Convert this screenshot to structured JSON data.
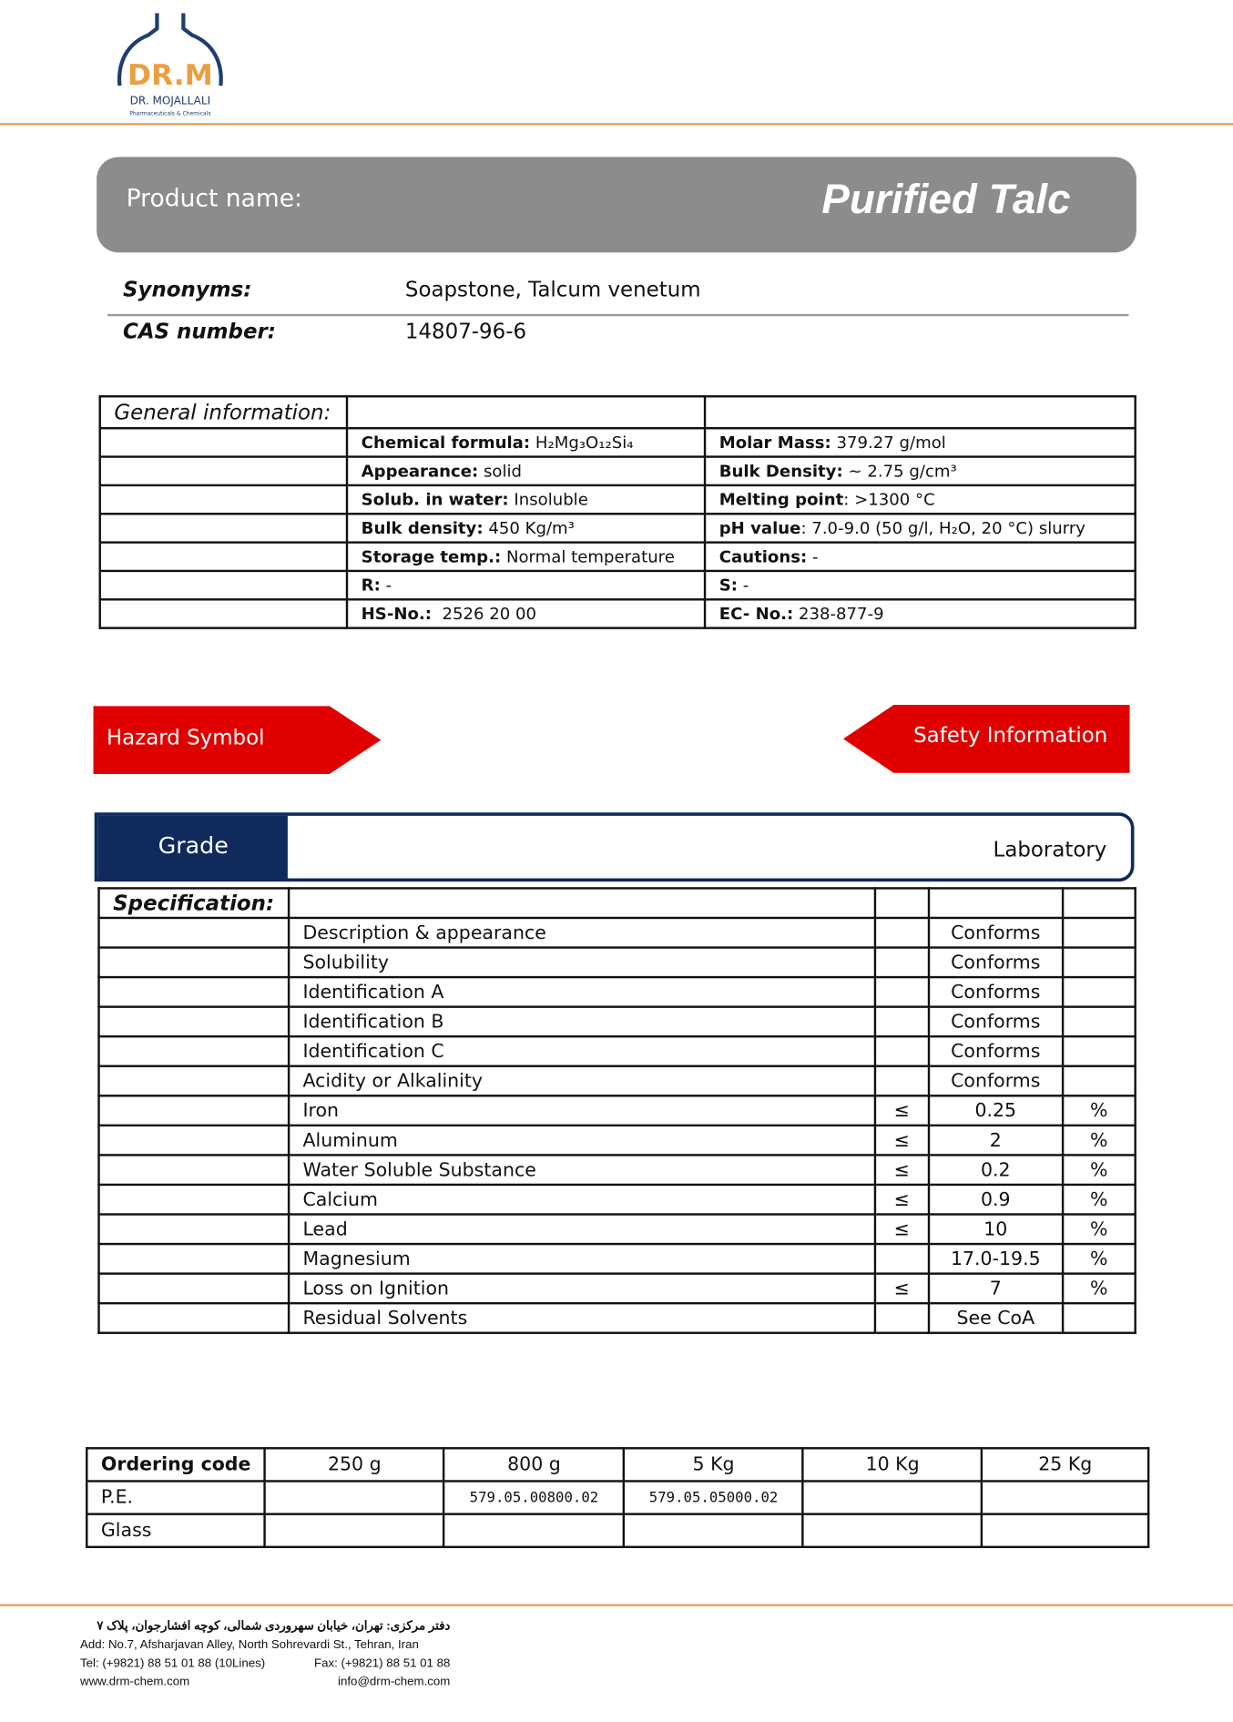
{
  "logo": {
    "text": "DR.M",
    "company": "DR. MOJALLALI",
    "tagline": "Pharmaceuticals & Chemicals",
    "colors": {
      "navy": "#1f3e6e",
      "orange": "#e8a040"
    }
  },
  "product": {
    "label": "Product name:",
    "name": "Purified Talc"
  },
  "synonyms": {
    "label": "Synonyms:",
    "value": "Soapstone, Talcum venetum"
  },
  "cas": {
    "label": "CAS number:",
    "value": "14807-96-6"
  },
  "general": {
    "title": "General information:",
    "rows": [
      [
        {
          "k": "Chemical formula:",
          "v": " H₂Mg₃O₁₂Si₄"
        },
        {
          "k": "Molar Mass:",
          "v": " 379.27 g/mol"
        }
      ],
      [
        {
          "k": "Appearance:",
          "v": " solid"
        },
        {
          "k": "Bulk Density:",
          "v": " ~ 2.75 g/cm³"
        }
      ],
      [
        {
          "k": "Solub. in water:",
          "v": " Insoluble"
        },
        {
          "k": "Melting point",
          "v": ": >1300 °C"
        }
      ],
      [
        {
          "k": "Bulk density:",
          "v": " 450 Kg/m³"
        },
        {
          "k": "pH value",
          "v": ": 7.0-9.0 (50 g/l, H₂O, 20 °C) slurry"
        }
      ],
      [
        {
          "k": "Storage temp.:",
          "v": " Normal temperature"
        },
        {
          "k": "Cautions:",
          "v": " -"
        }
      ],
      [
        {
          "k": "R:",
          "v": " -"
        },
        {
          "k": "S:",
          "v": " -"
        }
      ],
      [
        {
          "k": "HS-No.:",
          "v": "  2526 20 00"
        },
        {
          "k": "EC- No.:",
          "v": " 238-877-9"
        }
      ]
    ]
  },
  "hazard": {
    "label": "Hazard Symbol",
    "color": "#e00000"
  },
  "safety": {
    "label": "Safety Information"
  },
  "grade": {
    "label": "Grade",
    "value": "Laboratory",
    "color": "#102a5c"
  },
  "spec": {
    "title": "Specification:",
    "rows": [
      {
        "test": "Description & appearance",
        "op": "",
        "val": "Conforms",
        "unit": ""
      },
      {
        "test": "Solubility",
        "op": "",
        "val": "Conforms",
        "unit": ""
      },
      {
        "test": "Identification A",
        "op": "",
        "val": "Conforms",
        "unit": ""
      },
      {
        "test": "Identification B",
        "op": "",
        "val": "Conforms",
        "unit": ""
      },
      {
        "test": "Identification C",
        "op": "",
        "val": "Conforms",
        "unit": ""
      },
      {
        "test": "Acidity or Alkalinity",
        "op": "",
        "val": "Conforms",
        "unit": ""
      },
      {
        "test": "Iron",
        "op": "≤",
        "val": "0.25",
        "unit": "%"
      },
      {
        "test": "Aluminum",
        "op": "≤",
        "val": "2",
        "unit": "%"
      },
      {
        "test": "Water Soluble Substance",
        "op": "≤",
        "val": "0.2",
        "unit": "%"
      },
      {
        "test": "Calcium",
        "op": "≤",
        "val": "0.9",
        "unit": "%"
      },
      {
        "test": "Lead",
        "op": "≤",
        "val": "10",
        "unit": "%"
      },
      {
        "test": "Magnesium",
        "op": "",
        "val": "17.0-19.5",
        "unit": "%"
      },
      {
        "test": "Loss on Ignition",
        "op": "≤",
        "val": "7",
        "unit": "%"
      },
      {
        "test": "Residual Solvents",
        "op": "",
        "val": "See CoA",
        "unit": ""
      }
    ]
  },
  "ordering": {
    "header": [
      "Ordering code",
      "250 g",
      "800 g",
      "5 Kg",
      "10 Kg",
      "25 Kg"
    ],
    "rows": [
      [
        "P.E.",
        "",
        "579.05.00800.02",
        "579.05.05000.02",
        "",
        ""
      ],
      [
        "Glass",
        "",
        "",
        "",
        "",
        ""
      ]
    ]
  },
  "footer": {
    "persian": "دفتر مرکزی: تهران، خیابان سهروردی شمالی، کوچه افشارجوان، پلاک ۷",
    "address": "Add: No.7, Afsharjavan Alley, North Sohrevardi St., Tehran, Iran",
    "tel": "Tel: (+9821) 88 51 01 88 (10Lines)",
    "fax": "Fax: (+9821) 88 51 01 88",
    "web": "www.drm-chem.com",
    "email": "info@drm-chem.com"
  }
}
